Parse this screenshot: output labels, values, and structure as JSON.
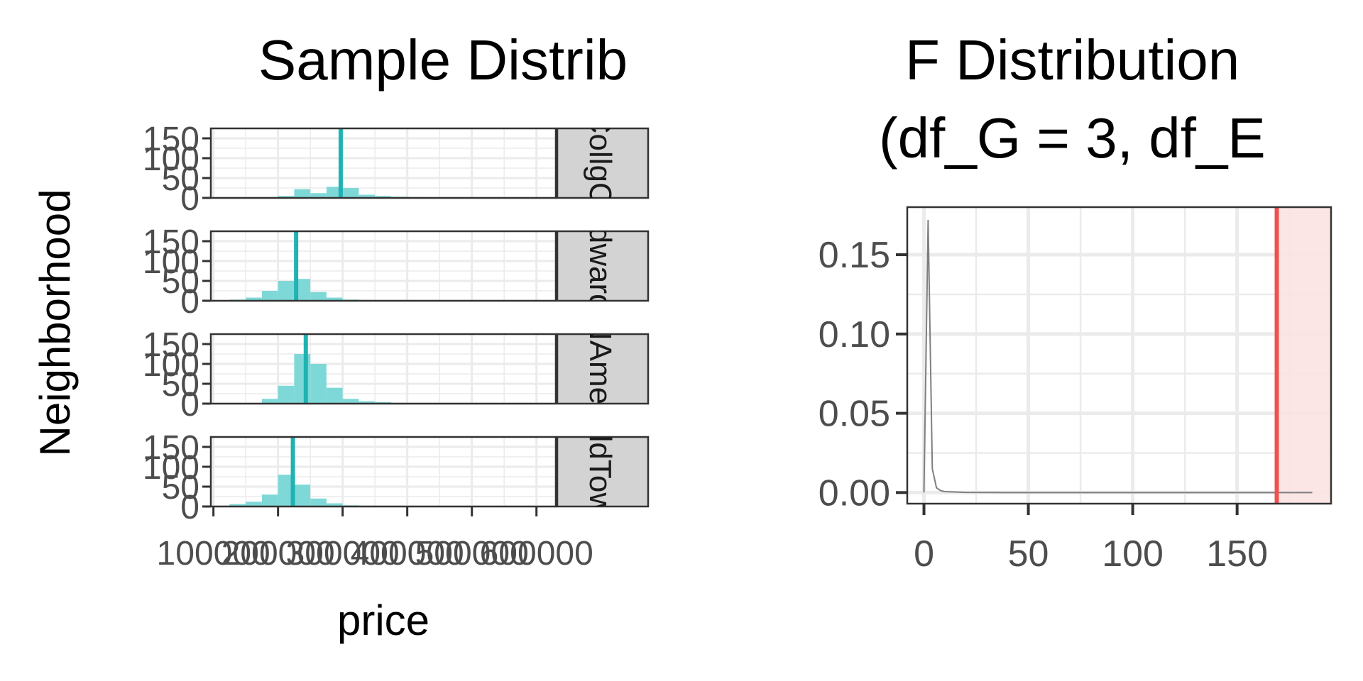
{
  "chart_data": [
    {
      "type": "bar",
      "title": "Sample Distrib",
      "xlabel": "price",
      "ylabel": "Neighborhood",
      "x_ticks": [
        100000,
        200000,
        300000,
        400000,
        500000,
        600000
      ],
      "x_tick_labels": [
        "100000",
        "200000",
        "300000",
        "400000",
        "500000",
        "600000"
      ],
      "y_ticks": [
        0,
        50,
        100,
        150
      ],
      "y_tick_labels": [
        "0",
        "50",
        "100",
        "150"
      ],
      "xlim": [
        96000,
        630000
      ],
      "ylim": [
        0,
        175
      ],
      "bin_width": 25000,
      "bar_color": "#7fd8d8",
      "mean_line_color": "#20b2b2",
      "strip_color": "#d3d3d3",
      "grid": true,
      "panels": [
        {
          "strip": "CollgCr",
          "strip_visible": "ollgC",
          "bin_starts": [
            200000,
            225000,
            250000,
            275000,
            300000,
            325000,
            350000,
            375000,
            400000,
            425000,
            450000,
            475000,
            500000,
            525000,
            550000
          ],
          "counts": [
            5,
            22,
            12,
            28,
            25,
            8,
            5,
            3,
            2,
            1,
            1,
            1,
            0,
            0,
            1
          ],
          "mean": 297000
        },
        {
          "strip": "Edwards",
          "strip_visible": "war",
          "bin_starts": [
            100000,
            125000,
            150000,
            175000,
            200000,
            225000,
            250000,
            275000,
            300000,
            325000,
            350000,
            375000,
            400000,
            425000,
            450000,
            475000,
            500000,
            525000,
            550000,
            575000,
            600000
          ],
          "counts": [
            1,
            3,
            8,
            25,
            50,
            55,
            22,
            8,
            3,
            2,
            1,
            1,
            1,
            1,
            1,
            1,
            1,
            1,
            1,
            0,
            0
          ],
          "mean": 228000
        },
        {
          "strip": "NAmes",
          "strip_visible": "Ame",
          "bin_starts": [
            175000,
            200000,
            225000,
            250000,
            275000,
            300000,
            325000,
            350000,
            375000,
            400000,
            425000,
            450000,
            475000,
            500000
          ],
          "counts": [
            12,
            45,
            125,
            100,
            40,
            12,
            6,
            4,
            2,
            1,
            1,
            1,
            0,
            1
          ],
          "mean": 243000
        },
        {
          "strip": "OldTown",
          "strip_visible": "dTo",
          "bin_starts": [
            100000,
            125000,
            150000,
            175000,
            200000,
            225000,
            250000,
            275000,
            300000,
            325000,
            350000,
            375000,
            400000,
            425000,
            450000,
            475000,
            500000,
            525000,
            550000
          ],
          "counts": [
            2,
            6,
            12,
            30,
            80,
            55,
            20,
            8,
            3,
            2,
            1,
            1,
            1,
            0,
            1,
            0,
            1,
            0,
            1
          ],
          "mean": 223000
        }
      ]
    },
    {
      "type": "line",
      "title": "F Distribution",
      "subtitle": "(df_G = 3, df_E",
      "xlabel": "",
      "ylabel": "",
      "x_ticks": [
        0,
        50,
        100,
        150
      ],
      "x_tick_labels": [
        "0",
        "50",
        "100",
        "150"
      ],
      "y_ticks": [
        0,
        0.05,
        0.1,
        0.15
      ],
      "y_tick_labels": [
        "0.00",
        "0.05",
        "0.10",
        "0.15"
      ],
      "xlim": [
        -8,
        195
      ],
      "ylim": [
        -0.007,
        0.18
      ],
      "grid": true,
      "line_color": "#7f7f7f",
      "critical_line_color": "#f05050",
      "region_fill": "#fbe2e2",
      "critical_value": 169,
      "series": [
        {
          "x": [
            0,
            2,
            4,
            6,
            8,
            10,
            20,
            40,
            60,
            80,
            100,
            120,
            140,
            160,
            186
          ],
          "y": [
            0,
            0.172,
            0.015,
            0.003,
            0.0012,
            0.0006,
            0.0001,
            0,
            0,
            0,
            0,
            0,
            0,
            0,
            0
          ]
        }
      ]
    }
  ]
}
